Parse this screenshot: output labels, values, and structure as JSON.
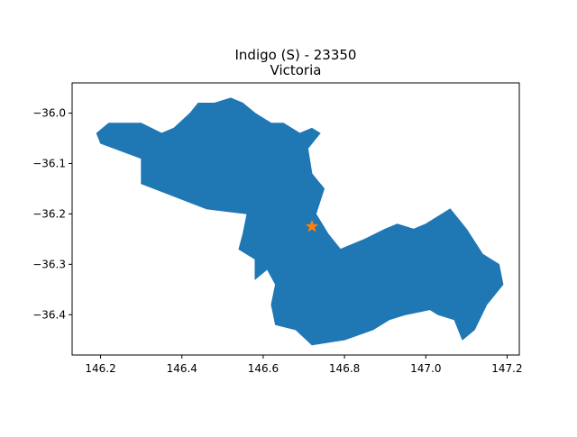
{
  "title": {
    "line1": "Indigo (S) - 23350",
    "line2": "Victoria"
  },
  "chart_data": {
    "type": "map",
    "xlim": [
      146.13,
      147.23
    ],
    "ylim": [
      -36.48,
      -35.94
    ],
    "x_ticks": [
      146.2,
      146.4,
      146.6,
      146.8,
      147.0,
      147.2
    ],
    "x_tick_labels": [
      "146.2",
      "146.4",
      "146.6",
      "146.8",
      "147.0",
      "147.2"
    ],
    "y_ticks": [
      -36.0,
      -36.1,
      -36.2,
      -36.3,
      -36.4
    ],
    "y_tick_labels": [
      "−36.0",
      "−36.1",
      "−36.2",
      "−36.3",
      "−36.4"
    ],
    "grid": false,
    "region": {
      "color": "#1f77b4",
      "boundary": [
        [
          146.19,
          -36.04
        ],
        [
          146.22,
          -36.02
        ],
        [
          146.26,
          -36.02
        ],
        [
          146.3,
          -36.02
        ],
        [
          146.35,
          -36.04
        ],
        [
          146.38,
          -36.03
        ],
        [
          146.42,
          -36.0
        ],
        [
          146.44,
          -35.98
        ],
        [
          146.48,
          -35.98
        ],
        [
          146.52,
          -35.97
        ],
        [
          146.55,
          -35.98
        ],
        [
          146.58,
          -36.0
        ],
        [
          146.62,
          -36.02
        ],
        [
          146.65,
          -36.02
        ],
        [
          146.69,
          -36.04
        ],
        [
          146.72,
          -36.03
        ],
        [
          146.74,
          -36.04
        ],
        [
          146.71,
          -36.07
        ],
        [
          146.72,
          -36.12
        ],
        [
          146.75,
          -36.15
        ],
        [
          146.73,
          -36.2
        ],
        [
          146.76,
          -36.24
        ],
        [
          146.79,
          -36.27
        ],
        [
          146.85,
          -36.25
        ],
        [
          146.9,
          -36.23
        ],
        [
          146.93,
          -36.22
        ],
        [
          146.97,
          -36.23
        ],
        [
          147.0,
          -36.22
        ],
        [
          147.06,
          -36.19
        ],
        [
          147.1,
          -36.23
        ],
        [
          147.14,
          -36.28
        ],
        [
          147.18,
          -36.3
        ],
        [
          147.19,
          -36.34
        ],
        [
          147.15,
          -36.38
        ],
        [
          147.12,
          -36.43
        ],
        [
          147.09,
          -36.45
        ],
        [
          147.07,
          -36.41
        ],
        [
          147.03,
          -36.4
        ],
        [
          147.01,
          -36.39
        ],
        [
          146.95,
          -36.4
        ],
        [
          146.91,
          -36.41
        ],
        [
          146.87,
          -36.43
        ],
        [
          146.8,
          -36.45
        ],
        [
          146.72,
          -36.46
        ],
        [
          146.68,
          -36.43
        ],
        [
          146.63,
          -36.42
        ],
        [
          146.62,
          -36.38
        ],
        [
          146.63,
          -36.34
        ],
        [
          146.61,
          -36.31
        ],
        [
          146.58,
          -36.33
        ],
        [
          146.58,
          -36.29
        ],
        [
          146.54,
          -36.27
        ],
        [
          146.55,
          -36.24
        ],
        [
          146.56,
          -36.2
        ],
        [
          146.46,
          -36.19
        ],
        [
          146.3,
          -36.14
        ],
        [
          146.3,
          -36.09
        ],
        [
          146.2,
          -36.06
        ]
      ]
    },
    "marker": {
      "shape": "star",
      "color": "#ff7f0e",
      "x": 146.72,
      "y": -36.225
    }
  }
}
